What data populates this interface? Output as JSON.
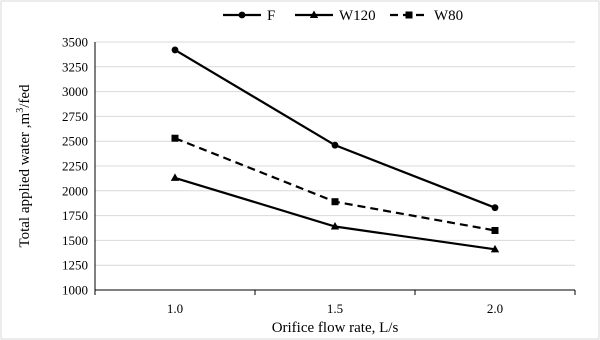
{
  "chart_data": {
    "type": "line",
    "title": "",
    "xlabel": "Orifice flow rate, L/s",
    "ylabel": "Total applied water ,m³/fed",
    "categories": [
      "1.0",
      "1.5",
      "2.0"
    ],
    "ylim": [
      1000,
      3500
    ],
    "yticks": [
      1000,
      1250,
      1500,
      1750,
      2000,
      2250,
      2500,
      2750,
      3000,
      3250,
      3500
    ],
    "grid": "horizontal",
    "legend_position": "top",
    "series": [
      {
        "name": "F",
        "values": [
          3420,
          2460,
          1830
        ],
        "marker": "circle",
        "dash": "solid",
        "color": "#000000"
      },
      {
        "name": "W120",
        "values": [
          2130,
          1640,
          1410
        ],
        "marker": "triangle",
        "dash": "solid",
        "color": "#000000"
      },
      {
        "name": "W80",
        "values": [
          2530,
          1890,
          1600
        ],
        "marker": "square",
        "dash": "dashed",
        "color": "#000000"
      }
    ]
  }
}
